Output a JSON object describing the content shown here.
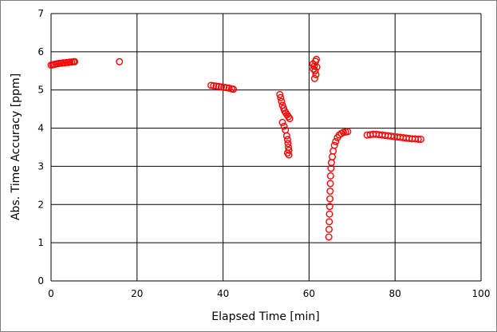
{
  "chart_data": {
    "type": "scatter",
    "title": "",
    "xlabel": "Elapsed Time [min]",
    "ylabel": "Abs. Time Accuracy [ppm]",
    "xlim": [
      0,
      100
    ],
    "ylim": [
      0,
      7
    ],
    "xticks": [
      0,
      20,
      40,
      60,
      80,
      100
    ],
    "yticks": [
      0,
      1,
      2,
      3,
      4,
      5,
      6,
      7
    ],
    "grid": true,
    "legend": "none",
    "marker": "open-circle",
    "colors": {
      "marker": "#ff0000",
      "grid": "#000000",
      "plot_bg": "#ffffff",
      "frame": "#7f7f7f"
    },
    "series": [
      {
        "points": [
          [
            0.0,
            5.65
          ],
          [
            0.4,
            5.66
          ],
          [
            0.8,
            5.67
          ],
          [
            1.2,
            5.68
          ],
          [
            1.6,
            5.69
          ],
          [
            2.0,
            5.7
          ],
          [
            2.4,
            5.7
          ],
          [
            2.8,
            5.71
          ],
          [
            3.2,
            5.71
          ],
          [
            3.6,
            5.72
          ],
          [
            4.0,
            5.72
          ],
          [
            4.4,
            5.73
          ],
          [
            4.8,
            5.73
          ],
          [
            5.2,
            5.74
          ],
          [
            5.5,
            5.74
          ],
          [
            15.9,
            5.74
          ],
          [
            37.2,
            5.12
          ],
          [
            37.8,
            5.11
          ],
          [
            38.4,
            5.1
          ],
          [
            39.0,
            5.09
          ],
          [
            39.6,
            5.08
          ],
          [
            40.2,
            5.07
          ],
          [
            40.8,
            5.06
          ],
          [
            41.4,
            5.05
          ],
          [
            42.0,
            5.03
          ],
          [
            42.4,
            5.02
          ],
          [
            53.2,
            4.88
          ],
          [
            53.4,
            4.8
          ],
          [
            53.6,
            4.7
          ],
          [
            53.8,
            4.6
          ],
          [
            54.1,
            4.52
          ],
          [
            54.3,
            4.45
          ],
          [
            54.6,
            4.4
          ],
          [
            54.9,
            4.35
          ],
          [
            55.2,
            4.3
          ],
          [
            55.5,
            4.25
          ],
          [
            53.8,
            4.15
          ],
          [
            54.2,
            4.05
          ],
          [
            54.5,
            3.95
          ],
          [
            54.8,
            3.8
          ],
          [
            55.0,
            3.7
          ],
          [
            55.1,
            3.6
          ],
          [
            55.2,
            3.5
          ],
          [
            55.3,
            3.42
          ],
          [
            55.3,
            3.3
          ],
          [
            55.0,
            3.35
          ],
          [
            60.9,
            5.68
          ],
          [
            61.2,
            5.62
          ],
          [
            61.4,
            5.5
          ],
          [
            61.6,
            5.4
          ],
          [
            61.3,
            5.3
          ],
          [
            61.5,
            5.75
          ],
          [
            61.7,
            5.8
          ],
          [
            61.0,
            5.55
          ],
          [
            61.8,
            5.6
          ],
          [
            64.6,
            1.15
          ],
          [
            64.65,
            1.35
          ],
          [
            64.7,
            1.55
          ],
          [
            64.75,
            1.75
          ],
          [
            64.8,
            1.95
          ],
          [
            64.85,
            2.15
          ],
          [
            64.9,
            2.35
          ],
          [
            64.95,
            2.55
          ],
          [
            65.0,
            2.75
          ],
          [
            65.1,
            2.95
          ],
          [
            65.2,
            3.1
          ],
          [
            65.4,
            3.25
          ],
          [
            65.6,
            3.4
          ],
          [
            65.9,
            3.55
          ],
          [
            66.2,
            3.65
          ],
          [
            66.6,
            3.75
          ],
          [
            67.0,
            3.82
          ],
          [
            67.5,
            3.86
          ],
          [
            68.0,
            3.89
          ],
          [
            68.5,
            3.9
          ],
          [
            69.0,
            3.91
          ],
          [
            73.5,
            3.82
          ],
          [
            74.2,
            3.83
          ],
          [
            74.9,
            3.84
          ],
          [
            75.6,
            3.84
          ],
          [
            76.3,
            3.83
          ],
          [
            77.0,
            3.82
          ],
          [
            77.7,
            3.81
          ],
          [
            78.4,
            3.8
          ],
          [
            79.1,
            3.79
          ],
          [
            79.8,
            3.78
          ],
          [
            80.5,
            3.77
          ],
          [
            81.2,
            3.76
          ],
          [
            81.9,
            3.75
          ],
          [
            82.6,
            3.74
          ],
          [
            83.3,
            3.73
          ],
          [
            84.0,
            3.72
          ],
          [
            84.7,
            3.72
          ],
          [
            85.4,
            3.71
          ],
          [
            86.0,
            3.71
          ]
        ]
      }
    ]
  }
}
